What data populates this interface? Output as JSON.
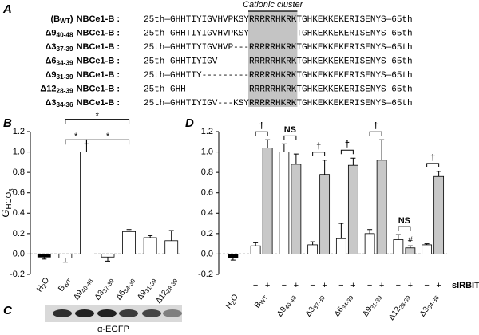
{
  "panel_a": {
    "label": "A",
    "header": "Cationic cluster",
    "rows": [
      {
        "name": [
          {
            "t": "(B"
          },
          {
            "t": "WT",
            "level": 1
          },
          {
            "t": ")"
          }
        ],
        "suffix": "NBCe1-B :",
        "left": "25th—GHHTIYIGVHVPKSY",
        "cluster": "RRRRRHKRK",
        "right": "TGHKEKKEKERISENYS—65th"
      },
      {
        "name": [
          {
            "t": "Δ9"
          },
          {
            "t": "40-48",
            "level": 1
          }
        ],
        "suffix": "NBCe1-B :",
        "left": "25th—GHHTIYIGVHVPKSY",
        "cluster": "---------",
        "right": "TGHKEKKEKERISENYS—65th"
      },
      {
        "name": [
          {
            "t": "Δ3"
          },
          {
            "t": "37-39",
            "level": 1
          }
        ],
        "suffix": "NBCe1-B :",
        "left": "25th—GHHTIYIGVHVP---",
        "cluster": "RRRRRHKRK",
        "right": "TGHKEKKEKERISENYS—65th"
      },
      {
        "name": [
          {
            "t": "Δ6"
          },
          {
            "t": "34-39",
            "level": 1
          }
        ],
        "suffix": "NBCe1-B :",
        "left": "25th—GHHTIYIGV------",
        "cluster": "RRRRRHKRK",
        "right": "TGHKEKKEKERISENYS—65th"
      },
      {
        "name": [
          {
            "t": "Δ9"
          },
          {
            "t": "31-39",
            "level": 1
          }
        ],
        "suffix": "NBCe1-B :",
        "left": "25th—GHHTIY---------",
        "cluster": "RRRRRHKRK",
        "right": "TGHKEKKEKERISENYS—65th"
      },
      {
        "name": [
          {
            "t": "Δ12"
          },
          {
            "t": "28-39",
            "level": 1
          }
        ],
        "suffix": "NBCe1-B :",
        "left": "25th—GHH------------",
        "cluster": "RRRRRHKRK",
        "right": "TGHKEKKEKERISENYS—65th"
      },
      {
        "name": [
          {
            "t": "Δ3"
          },
          {
            "t": "34-36",
            "level": 1
          }
        ],
        "suffix": "NBCe1-B :",
        "left": "25th—GHHTIYIGV---KSY",
        "cluster": "RRRRRHKRK",
        "right": "TGHKEKKEKERISENYS—65th"
      }
    ]
  },
  "chart_data": [
    {
      "type": "bar",
      "panel_label": "B",
      "y_label": [
        {
          "t": "G",
          "italic": true
        },
        {
          "t": "HCO",
          "level": 1
        },
        {
          "t": "3",
          "level": 2
        }
      ],
      "categories": [
        [
          {
            "t": "H"
          },
          {
            "t": "2",
            "level": 1
          },
          {
            "t": "O"
          }
        ],
        [
          {
            "t": "B"
          },
          {
            "t": "WT",
            "level": 1
          }
        ],
        [
          {
            "t": "Δ9"
          },
          {
            "t": "40-48",
            "level": 1
          }
        ],
        [
          {
            "t": "Δ3"
          },
          {
            "t": "37-39",
            "level": 1
          }
        ],
        [
          {
            "t": "Δ6"
          },
          {
            "t": "34-39",
            "level": 1
          }
        ],
        [
          {
            "t": "Δ9"
          },
          {
            "t": "31-39",
            "level": 1
          }
        ],
        [
          {
            "t": "Δ12"
          },
          {
            "t": "28-39",
            "level": 1
          }
        ]
      ],
      "series": [
        {
          "values": [
            -0.03,
            -0.04,
            1.0,
            -0.03,
            0.22,
            0.16,
            0.13
          ],
          "errors": [
            0.02,
            0.04,
            0.08,
            0.04,
            0.02,
            0.02,
            0.1
          ],
          "colors": [
            "#000000",
            "#ffffff",
            "#ffffff",
            "#ffffff",
            "#ffffff",
            "#ffffff",
            "#ffffff"
          ]
        }
      ],
      "ylim": [
        -0.2,
        1.2
      ],
      "yticks": [
        -0.2,
        {
          "value": 0,
          "label": "0.0"
        },
        0.2,
        0.4,
        0.6,
        0.8,
        {
          "value": 1,
          "label": "1.0"
        },
        1.2
      ],
      "annotations": [
        "*",
        "*",
        "*"
      ]
    },
    {
      "type": "grouped_bar",
      "panel_label": "D",
      "categories": [
        [
          {
            "t": "H"
          },
          {
            "t": "2",
            "level": 1
          },
          {
            "t": "O"
          }
        ],
        [
          {
            "t": "B"
          },
          {
            "t": "WT",
            "level": 1
          }
        ],
        [
          {
            "t": "Δ9"
          },
          {
            "t": "40-48",
            "level": 1
          }
        ],
        [
          {
            "t": "Δ3"
          },
          {
            "t": "37-39",
            "level": 1
          }
        ],
        [
          {
            "t": "Δ6"
          },
          {
            "t": "34-39",
            "level": 1
          }
        ],
        [
          {
            "t": "Δ9"
          },
          {
            "t": "31-39",
            "level": 1
          }
        ],
        [
          {
            "t": "Δ12"
          },
          {
            "t": "28-39",
            "level": 1
          }
        ],
        [
          {
            "t": "Δ3"
          },
          {
            "t": "34-36",
            "level": 1
          }
        ]
      ],
      "series": [
        {
          "name": "−",
          "values": [
            -0.04,
            0.08,
            1.0,
            0.09,
            0.15,
            0.2,
            0.14,
            0.09
          ],
          "errors": [
            0.02,
            0.03,
            0.08,
            0.03,
            0.15,
            0.04,
            0.05,
            0.01
          ],
          "colors": [
            "#000000",
            "#ffffff",
            "#ffffff",
            "#ffffff",
            "#ffffff",
            "#ffffff",
            "#ffffff",
            "#ffffff"
          ]
        },
        {
          "name": "+",
          "color": "#c8c8c8",
          "values": [
            null,
            1.04,
            0.88,
            0.78,
            0.87,
            0.92,
            0.06,
            0.76
          ],
          "errors": [
            null,
            0.08,
            0.1,
            0.14,
            0.07,
            0.2,
            0.02,
            0.05
          ],
          "bar_annotations": [
            null,
            null,
            null,
            null,
            null,
            null,
            "#",
            null
          ]
        }
      ],
      "pair_annotations": [
        null,
        "†",
        "NS",
        "†",
        "†",
        "†",
        "NS",
        "†"
      ],
      "legend_title": "sIRBIT",
      "ylim": [
        -0.2,
        1.2
      ],
      "yticks": [
        -0.2,
        {
          "value": 0,
          "label": "0.0"
        },
        0.2,
        0.4,
        0.6,
        0.8,
        {
          "value": 1,
          "label": "1.0"
        },
        1.2
      ]
    }
  ],
  "panel_c": {
    "label": "C",
    "caption": "α-EGFP"
  }
}
